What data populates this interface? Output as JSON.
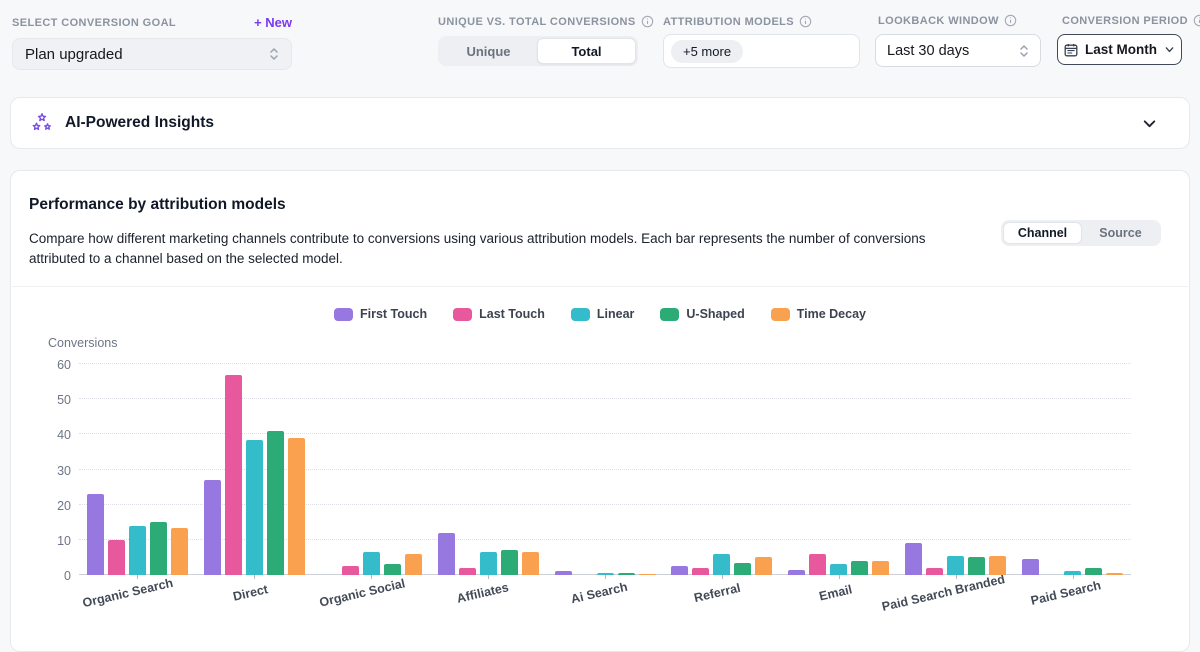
{
  "filters": {
    "conversion_goal": {
      "label": "Select Conversion Goal",
      "new_link": "+ New",
      "value": "Plan upgraded"
    },
    "unique_total": {
      "label": "Unique vs. Total Conversions",
      "options": [
        "Unique",
        "Total"
      ],
      "selected": "Total"
    },
    "attribution_models": {
      "label": "Attribution Models",
      "chip": "+5 more"
    },
    "lookback": {
      "label": "Lookback Window",
      "value": "Last 30 days"
    },
    "conversion_period": {
      "label": "Conversion Period",
      "value": "Last Month"
    }
  },
  "insights": {
    "title": "AI-Powered Insights"
  },
  "performance": {
    "title": "Performance by attribution models",
    "description": "Compare how different marketing channels contribute to conversions using various attribution models. Each bar represents the number of conversions attributed to a channel based on the selected model.",
    "view_toggle": {
      "options": [
        "Channel",
        "Source"
      ],
      "selected": "Channel"
    }
  },
  "chart_data": {
    "type": "bar",
    "title": "Performance by attribution models",
    "ylabel": "Conversions",
    "ylim": [
      0,
      60
    ],
    "yticks": [
      0,
      10,
      20,
      30,
      40,
      50,
      60
    ],
    "grid": true,
    "legend_position": "top",
    "categories": [
      "Organic Search",
      "Direct",
      "Organic Social",
      "Affiliates",
      "Ai Search",
      "Referral",
      "Email",
      "Paid Search Branded",
      "Paid Search"
    ],
    "series": [
      {
        "name": "First Touch",
        "color": "#9678e0",
        "values": [
          23,
          27,
          0,
          12,
          1,
          2.5,
          1.5,
          9,
          4.5
        ]
      },
      {
        "name": "Last Touch",
        "color": "#e8589c",
        "values": [
          10,
          57,
          2.5,
          2,
          0,
          2,
          6,
          2,
          0
        ]
      },
      {
        "name": "Linear",
        "color": "#35bccb",
        "values": [
          14,
          38.5,
          6.5,
          6.5,
          0.5,
          6,
          3,
          5.5,
          1
        ]
      },
      {
        "name": "U-Shaped",
        "color": "#2dab77",
        "values": [
          15,
          41,
          3,
          7,
          0.5,
          3.5,
          4,
          5,
          2
        ]
      },
      {
        "name": "Time Decay",
        "color": "#f9a14f",
        "values": [
          13.5,
          39,
          6,
          6.5,
          0.3,
          5,
          4,
          5.5,
          0.5
        ]
      }
    ]
  }
}
